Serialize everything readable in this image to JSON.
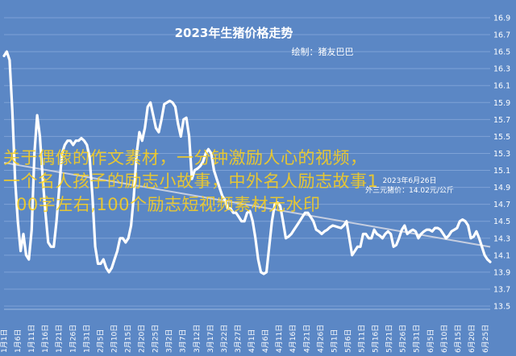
{
  "chart_data": {
    "type": "line",
    "title": "2023年生猪价格走势",
    "subtitle": "绘制：猪友巴巴",
    "xlabel": "",
    "ylabel": "",
    "ylim": [
      13.5,
      16.9
    ],
    "yticks": [
      "13.5",
      "13.7",
      "13.9",
      "14.1",
      "14.3",
      "14.5",
      "14.7",
      "14.9",
      "15.1",
      "15.3",
      "15.5",
      "15.7",
      "15.9",
      "16.1",
      "16.3",
      "16.5",
      "16.7",
      "16.9"
    ],
    "categories": [
      "1月1日",
      "1月6日",
      "1月11日",
      "1月16日",
      "1月21日",
      "1月26日",
      "1月31日",
      "2月5日",
      "2月10日",
      "2月15日",
      "2月20日",
      "2月25日",
      "3月2日",
      "3月7日",
      "3月12日",
      "3月17日",
      "3月22日",
      "3月27日",
      "4月1日",
      "4月6日",
      "4月11日",
      "4月16日",
      "4月21日",
      "4月26日",
      "5月1日",
      "5月6日",
      "5月11日",
      "5月16日",
      "5月21日",
      "5月26日",
      "5月31日",
      "6月5日",
      "6月10日",
      "6月15日",
      "6月20日",
      "6月25日"
    ],
    "series": [
      {
        "name": "",
        "color": "#ffffff",
        "x": [
          1,
          2,
          3,
          4,
          5,
          6,
          7,
          8,
          9,
          10,
          11,
          12,
          13,
          14,
          15,
          16,
          17,
          18,
          19,
          20,
          21,
          22,
          23,
          24,
          25,
          26,
          27,
          28,
          29,
          30,
          31,
          32,
          33,
          34,
          35,
          36,
          37,
          38,
          39,
          40,
          41,
          42,
          43,
          44,
          45,
          46,
          47,
          48,
          49,
          50,
          51,
          52,
          53,
          54,
          55,
          56,
          57,
          58,
          59,
          60,
          61,
          62,
          63,
          64,
          65,
          66,
          67,
          68,
          69,
          70,
          71,
          72,
          73,
          74,
          75,
          76,
          77,
          78,
          79,
          80,
          81,
          82,
          83,
          84,
          85,
          86,
          87,
          88,
          89,
          90,
          91,
          92,
          93,
          94,
          95,
          96,
          97,
          98,
          99,
          100,
          101,
          102,
          103,
          104,
          105,
          106,
          107,
          108,
          109,
          110,
          111,
          112,
          113,
          114,
          115,
          116,
          117,
          118,
          119,
          120,
          121,
          122,
          123,
          124,
          125,
          126,
          127,
          128,
          129,
          130,
          131,
          132,
          133,
          134,
          135,
          136,
          137,
          138,
          139,
          140,
          141,
          142,
          143,
          144,
          145,
          146,
          147,
          148,
          149,
          150,
          151,
          152,
          153,
          154,
          155,
          156,
          157,
          158,
          159,
          160,
          161,
          162,
          163,
          164,
          165,
          166,
          167,
          168,
          169,
          170,
          171,
          172,
          173,
          174,
          175,
          176,
          177
        ],
        "values": [
          16.45,
          16.5,
          16.4,
          15.8,
          15.0,
          14.5,
          14.15,
          14.35,
          14.1,
          14.05,
          14.4,
          15.3,
          15.75,
          15.5,
          15.0,
          14.6,
          14.25,
          14.2,
          14.2,
          14.5,
          14.9,
          15.3,
          15.4,
          15.45,
          15.45,
          15.4,
          15.45,
          15.45,
          15.48,
          15.45,
          15.4,
          15.25,
          14.8,
          14.2,
          14.0,
          14.0,
          14.05,
          13.95,
          13.9,
          13.95,
          14.05,
          14.15,
          14.3,
          14.3,
          14.25,
          14.3,
          14.45,
          14.8,
          15.3,
          15.55,
          15.45,
          15.6,
          15.85,
          15.9,
          15.75,
          15.6,
          15.55,
          15.7,
          15.88,
          15.9,
          15.92,
          15.9,
          15.85,
          15.65,
          15.5,
          15.7,
          15.72,
          15.5,
          15.0,
          15.1,
          15.12,
          15.15,
          15.2,
          15.3,
          15.35,
          15.3,
          15.1,
          15.0,
          14.9,
          14.8,
          14.75,
          14.65,
          14.65,
          14.6,
          14.6,
          14.55,
          14.5,
          14.5,
          14.6,
          14.62,
          14.5,
          14.3,
          14.05,
          13.9,
          13.88,
          13.9,
          14.2,
          14.5,
          14.7,
          14.72,
          14.68,
          14.5,
          14.3,
          14.32,
          14.35,
          14.4,
          14.45,
          14.5,
          14.55,
          14.6,
          14.6,
          14.55,
          14.5,
          14.4,
          14.38,
          14.35,
          14.38,
          14.4,
          14.43,
          14.45,
          14.44,
          14.43,
          14.42,
          14.45,
          14.5,
          14.3,
          14.1,
          14.15,
          14.2,
          14.2,
          14.35,
          14.35,
          14.3,
          14.3,
          14.4,
          14.35,
          14.33,
          14.3,
          14.35,
          14.38,
          14.35,
          14.2,
          14.22,
          14.3,
          14.4,
          14.45,
          14.35,
          14.38,
          14.4,
          14.38,
          14.3,
          14.35,
          14.38,
          14.4,
          14.4,
          14.38,
          14.42,
          14.42,
          14.4,
          14.35,
          14.3,
          14.33,
          14.38,
          14.4,
          14.42,
          14.5,
          14.52,
          14.5,
          14.45,
          14.3,
          14.32,
          14.38,
          14.3,
          14.2,
          14.1,
          14.05,
          14.02
        ]
      }
    ],
    "trendline": {
      "color": "#c6cee0"
    },
    "annotation": "2023年6月26日",
    "annotation_line2": "外三元猪价：14.02元/公斤"
  },
  "watermark": {
    "line1": "关于偶像的作文素材，一分钟激励人心的视频，",
    "line2": "一个名人孩子的励志小故事，中外名人励志故事1",
    "line3": "00字左右,100个励志短视频素材无水印"
  }
}
